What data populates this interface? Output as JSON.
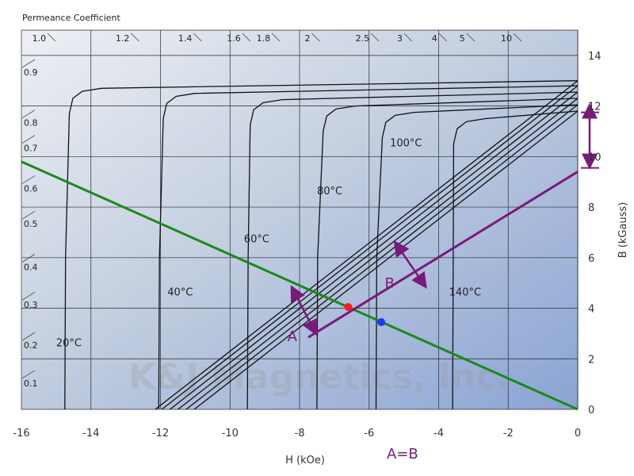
{
  "chart_data": {
    "type": "line",
    "top_title": "Permeance Coefficient",
    "xlabel": "H (kOe)",
    "ylabel": "B (kGauss)",
    "xlim": [
      -16,
      0
    ],
    "ylim": [
      0,
      15
    ],
    "x_ticks": [
      "-16",
      "-14",
      "-12",
      "-10",
      "-8",
      "-6",
      "-4",
      "-2",
      "0"
    ],
    "y_ticks": [
      "0",
      "2",
      "4",
      "6",
      "8",
      "10",
      "12",
      "14"
    ],
    "grid": true,
    "pc_top_labels": [
      {
        "label": "1.0",
        "h": -15.2
      },
      {
        "label": "1.2",
        "h": -12.8
      },
      {
        "label": "1.4",
        "h": -11.0
      },
      {
        "label": "1.6",
        "h": -9.6
      },
      {
        "label": "1.8",
        "h": -8.75
      },
      {
        "label": "2",
        "h": -7.6
      },
      {
        "label": "2.5",
        "h": -5.9
      },
      {
        "label": "3",
        "h": -4.95
      },
      {
        "label": "4",
        "h": -3.95
      },
      {
        "label": "5",
        "h": -3.15
      },
      {
        "label": "10",
        "h": -1.8
      }
    ],
    "pc_left_labels": [
      {
        "label": "0.9",
        "b": 13.4
      },
      {
        "label": "0.8",
        "b": 11.4
      },
      {
        "label": "0.7",
        "b": 10.4
      },
      {
        "label": "0.6",
        "b": 8.8
      },
      {
        "label": "0.5",
        "b": 7.4
      },
      {
        "label": "0.4",
        "b": 5.7
      },
      {
        "label": "0.3",
        "b": 4.2
      },
      {
        "label": "0.2",
        "b": 2.6
      },
      {
        "label": "0.1",
        "b": 1.1
      }
    ],
    "temperature_labels": [
      {
        "label": "20°C",
        "h": -15.0,
        "b": 2.5
      },
      {
        "label": "40°C",
        "h": -11.8,
        "b": 4.5
      },
      {
        "label": "60°C",
        "h": -9.6,
        "b": 6.6
      },
      {
        "label": "80°C",
        "h": -7.5,
        "b": 8.5
      },
      {
        "label": "100°C",
        "h": -5.4,
        "b": 10.4
      },
      {
        "label": "140°C",
        "h": -3.7,
        "b": 4.5
      }
    ],
    "series": [
      {
        "hk": -14.6,
        "hc": -14.75,
        "br": 13.0
      },
      {
        "hk": -11.9,
        "hc": -12.05,
        "br": 12.8
      },
      {
        "hk": -9.4,
        "hc": -9.5,
        "br": 12.55
      },
      {
        "hk": -7.3,
        "hc": -7.5,
        "br": 12.3
      },
      {
        "hk": -5.6,
        "hc": -5.8,
        "br": 12.05
      },
      {
        "hk": -3.55,
        "hc": -3.6,
        "br": 11.8
      }
    ],
    "load_line": {
      "h1": -16,
      "b1": 9.8,
      "h2": 0,
      "b2": 0,
      "color": "#1a8a1a"
    },
    "recoil_line": {
      "h1": -7.75,
      "b1": 2.85,
      "h2": 0,
      "b2": 9.4,
      "color": "#7a1a7a"
    },
    "point_red": {
      "h": -6.6,
      "b": 4.05,
      "color": "#ff1a1a"
    },
    "point_blue": {
      "h": -5.65,
      "b": 3.45,
      "color": "#1a3aff"
    },
    "arrow_a": {
      "label": "A",
      "from_h": -8.1,
      "from_b": 4.5,
      "to_h": -7.55,
      "to_b": 3.05
    },
    "arrow_b": {
      "label": "B",
      "from_h": -5.1,
      "from_b": 6.3,
      "to_h": -4.4,
      "to_b": 4.9
    },
    "right_bracket": {
      "b_top": 11.75,
      "b_bottom": 9.55
    },
    "caption": "A=B",
    "watermark": "K&J Magnetics, Inc."
  }
}
